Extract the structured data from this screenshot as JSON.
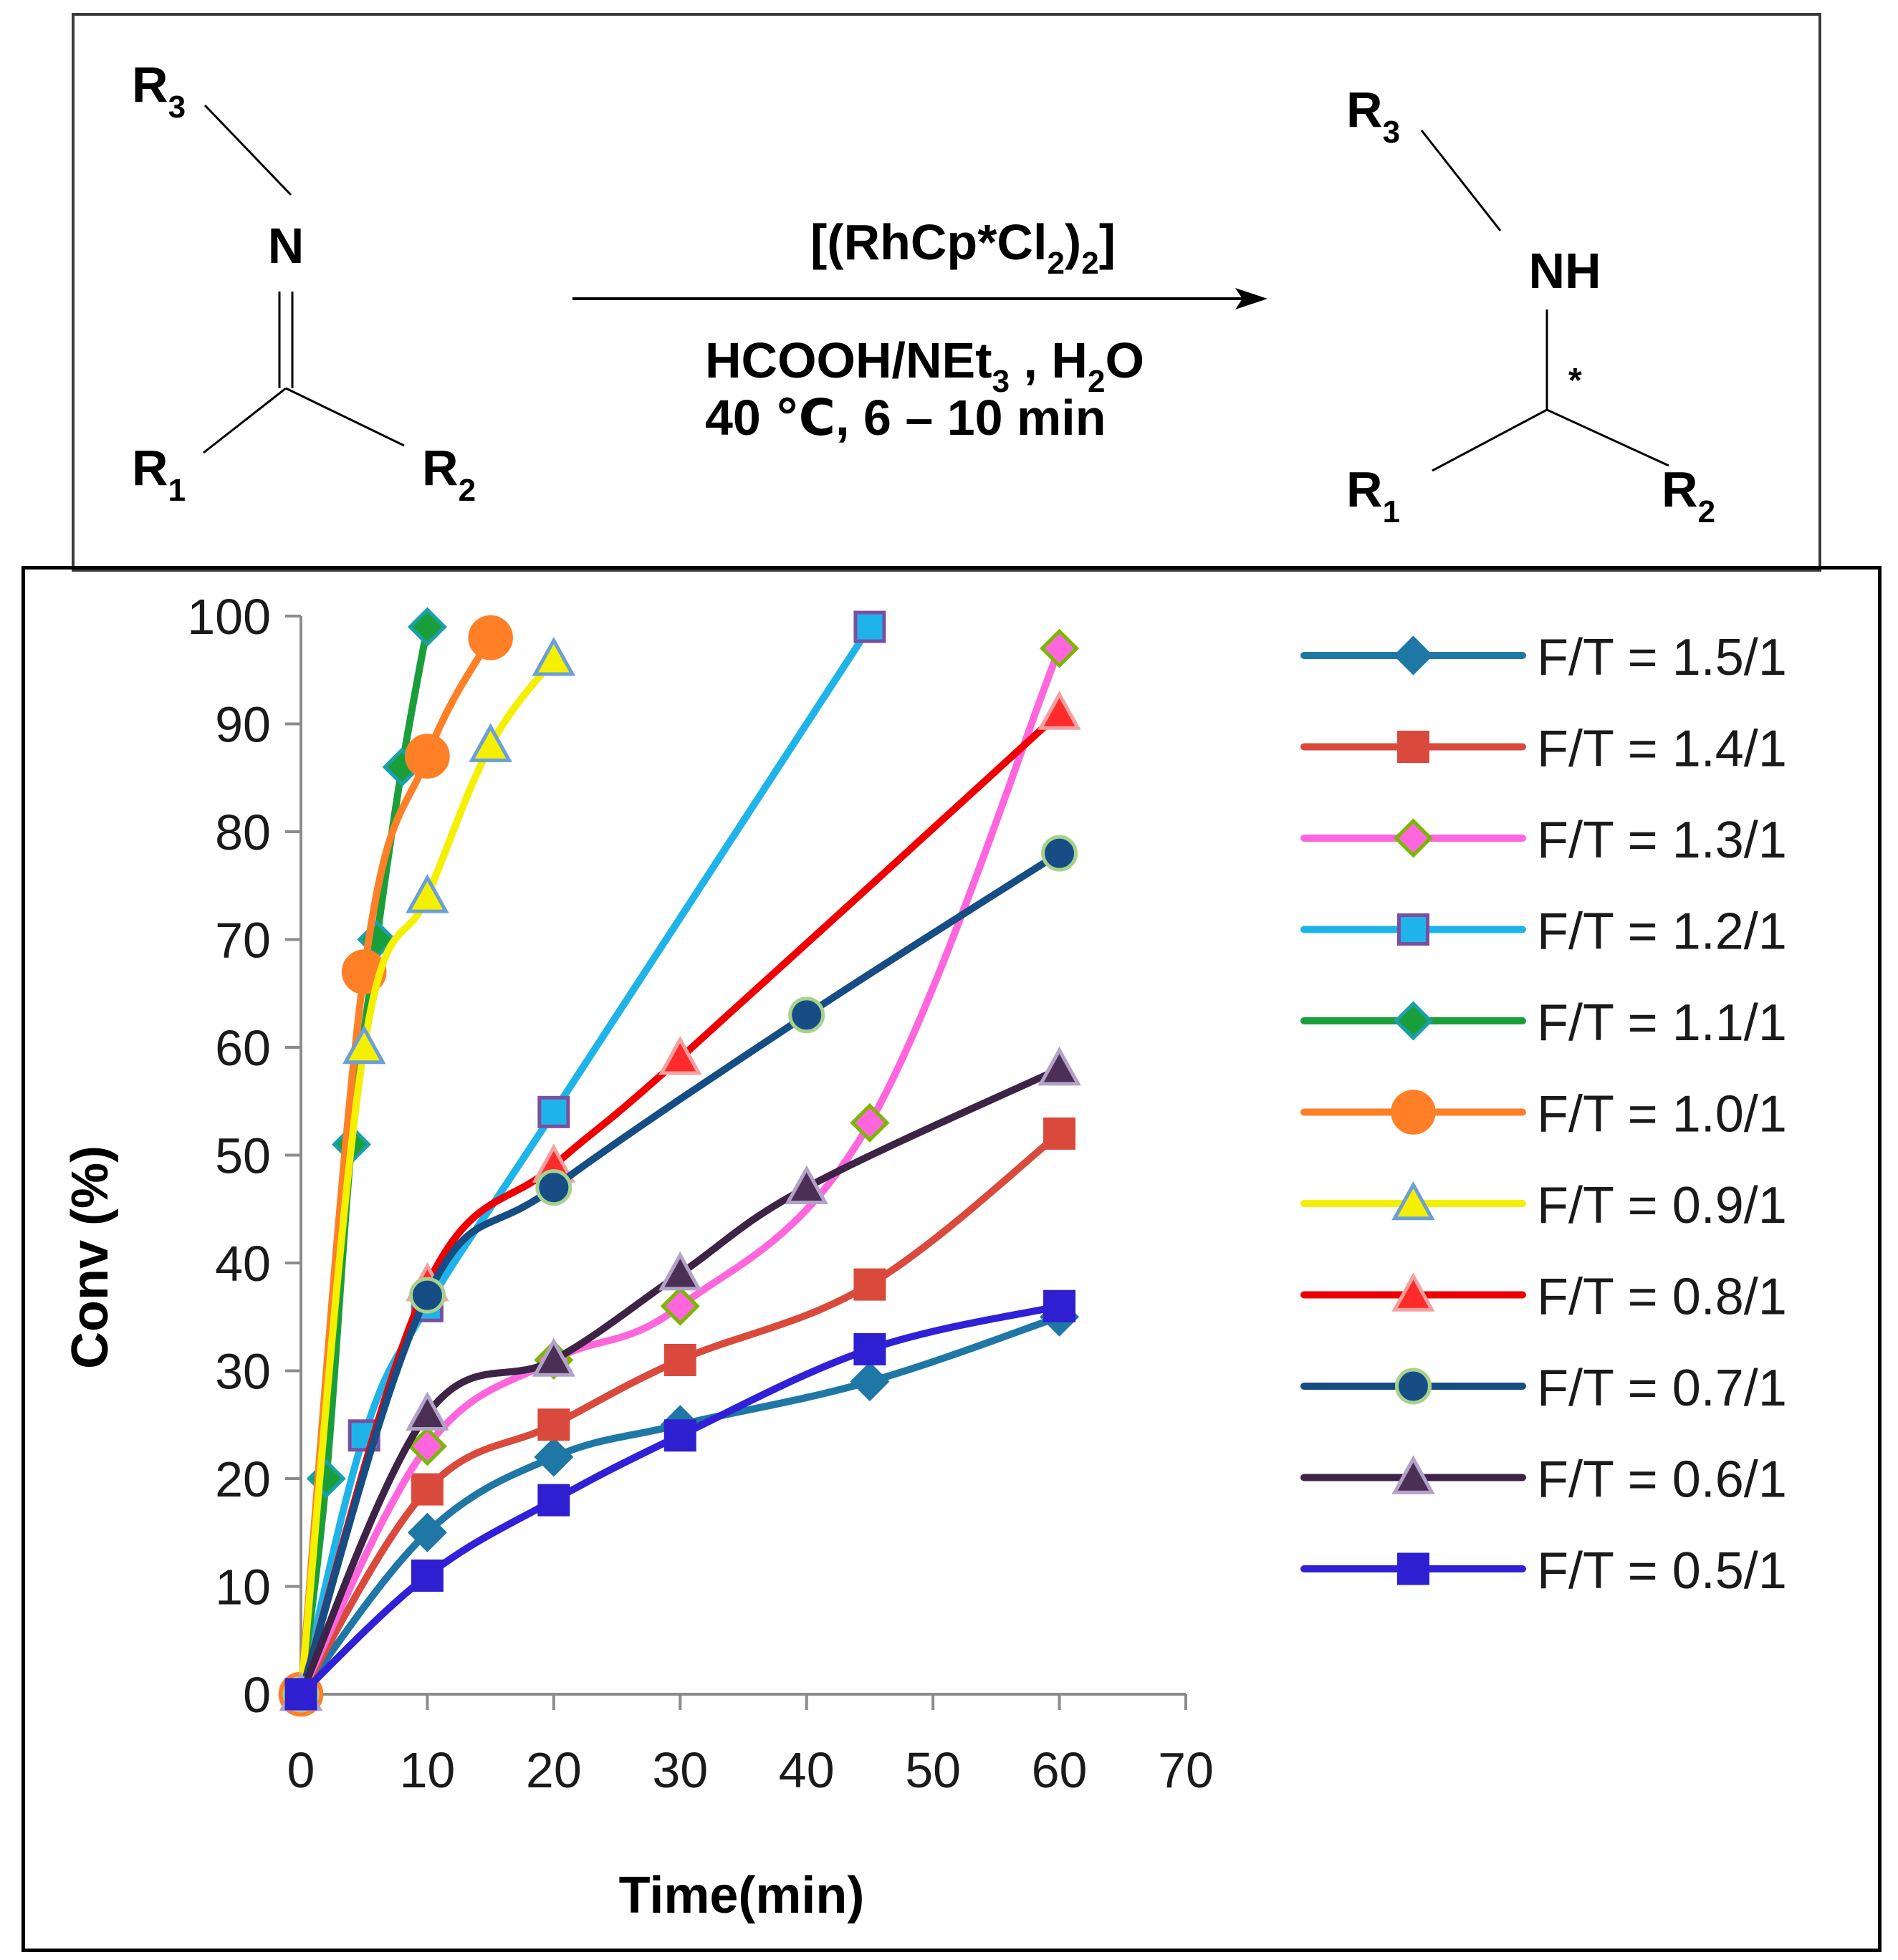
{
  "scheme": {
    "reactant": {
      "n_label": "N",
      "r1": "R",
      "r1_sub": "1",
      "r2": "R",
      "r2_sub": "2",
      "r3": "R",
      "r3_sub": "3"
    },
    "product": {
      "nh_label": "NH",
      "star": "*",
      "r1": "R",
      "r1_sub": "1",
      "r2": "R",
      "r2_sub": "2",
      "r3": "R",
      "r3_sub": "3"
    },
    "catalyst": {
      "part1": "[(RhCp*Cl",
      "sub1": "2",
      "part2": ")",
      "sub2": "2",
      "part3": "]"
    },
    "conditions_line1": {
      "part1": "HCOOH/NEt",
      "sub1": "3",
      "part2": " , H",
      "sub2": "2",
      "part3": "O"
    },
    "conditions_line2": "40 ℃, 6 – 10 min"
  },
  "chart_data": {
    "type": "line",
    "title": "",
    "xlabel": "Time(min)",
    "ylabel": "Conv (%)",
    "xlim": [
      0,
      70
    ],
    "ylim": [
      0,
      100
    ],
    "xticks": [
      0,
      10,
      20,
      30,
      40,
      50,
      60,
      70
    ],
    "yticks": [
      0,
      10,
      20,
      30,
      40,
      50,
      60,
      70,
      80,
      90,
      100
    ],
    "xtick_labels": [
      "0",
      "10",
      "20",
      "30",
      "40",
      "50",
      "60",
      "70"
    ],
    "ytick_labels": [
      "0",
      "10",
      "20",
      "30",
      "40",
      "50",
      "60",
      "70",
      "80",
      "90",
      "100"
    ],
    "grid": false,
    "legend_position": "right",
    "series": [
      {
        "name": "F/T = 1.5/1",
        "color": "#1f77a6",
        "marker": "diamond",
        "fill": "#1f77a6",
        "edge": "#1f77a6",
        "x": [
          0,
          10,
          20,
          30,
          45,
          60
        ],
        "y": [
          0,
          15,
          22,
          25,
          29,
          35
        ]
      },
      {
        "name": "F/T = 1.4/1",
        "color": "#d94a3d",
        "marker": "square",
        "fill": "#d94a3d",
        "edge": "#d94a3d",
        "x": [
          0,
          10,
          20,
          30,
          45,
          60
        ],
        "y": [
          0,
          19,
          25,
          31,
          38,
          52
        ]
      },
      {
        "name": "F/T = 1.3/1",
        "color": "#ff66dd",
        "marker": "diamond",
        "fill": "#ff66dd",
        "edge": "#7ab800",
        "x": [
          0,
          10,
          20,
          30,
          45,
          60
        ],
        "y": [
          0,
          23,
          31,
          36,
          53,
          97
        ]
      },
      {
        "name": "F/T = 1.2/1",
        "color": "#1eb4ea",
        "marker": "square",
        "fill": "#1eb4ea",
        "edge": "#7a4fa0",
        "x": [
          0,
          5,
          10,
          20,
          45
        ],
        "y": [
          0,
          24,
          36,
          54,
          99
        ]
      },
      {
        "name": "F/T = 1.1/1",
        "color": "#1a9e3a",
        "marker": "diamond",
        "fill": "#1a9e3a",
        "edge": "#1aa0a8",
        "x": [
          0,
          2,
          4,
          6,
          8,
          10
        ],
        "y": [
          0,
          20,
          51,
          70,
          86,
          99
        ]
      },
      {
        "name": "F/T = 1.0/1",
        "color": "#ff7f27",
        "marker": "circle",
        "fill": "#ff7f27",
        "edge": "#ff7f27",
        "x": [
          0,
          5,
          10,
          15
        ],
        "y": [
          0,
          67,
          87,
          98
        ]
      },
      {
        "name": "F/T = 0.9/1",
        "color": "#f5f000",
        "marker": "triangle",
        "fill": "#f5f000",
        "edge": "#6a9fd8",
        "x": [
          0,
          5,
          10,
          15,
          20
        ],
        "y": [
          0,
          60,
          74,
          88,
          96
        ]
      },
      {
        "name": "F/T = 0.8/1",
        "color": "#ee0000",
        "marker": "triangle",
        "fill": "#ff2a2a",
        "edge": "#f4a0a0",
        "x": [
          0,
          10,
          20,
          30,
          60
        ],
        "y": [
          0,
          38,
          49,
          59,
          91
        ]
      },
      {
        "name": "F/T = 0.7/1",
        "color": "#154d84",
        "marker": "circle",
        "fill": "#154d84",
        "edge": "#a9d18e",
        "x": [
          0,
          10,
          20,
          40,
          60
        ],
        "y": [
          0,
          37,
          47,
          63,
          78
        ]
      },
      {
        "name": "F/T = 0.6/1",
        "color": "#3d2346",
        "marker": "triangle",
        "fill": "#4b2f55",
        "edge": "#b2a2c7",
        "x": [
          0,
          10,
          20,
          30,
          40,
          60
        ],
        "y": [
          0,
          26,
          31,
          39,
          47,
          58
        ]
      },
      {
        "name": "F/T = 0.5/1",
        "color": "#3020d8",
        "marker": "square",
        "fill": "#2e1fd0",
        "edge": "#2e1fd0",
        "x": [
          0,
          10,
          20,
          30,
          45,
          60
        ],
        "y": [
          0,
          11,
          18,
          24,
          32,
          36
        ]
      }
    ]
  }
}
